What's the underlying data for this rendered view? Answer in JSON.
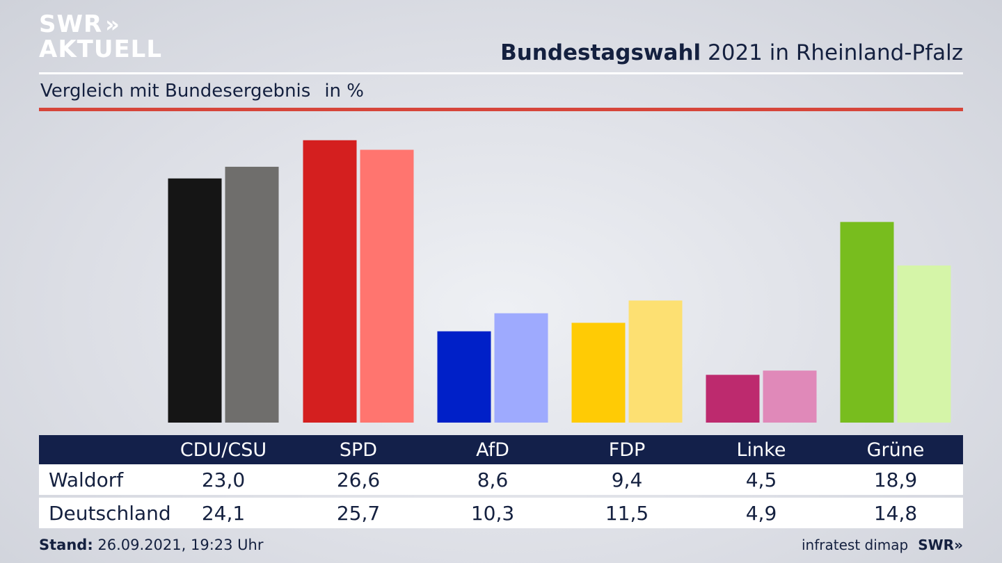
{
  "logo": {
    "line1": "SWR",
    "arrows": "»",
    "line2": "AKTUELL"
  },
  "title": {
    "bold": "Bundestagswahl",
    "rest": " 2021 in Rheinland-Pfalz"
  },
  "subtitle": {
    "text": "Vergleich mit Bundesergebnis",
    "unit": "in %"
  },
  "table": {
    "headers": [
      "CDU/CSU",
      "SPD",
      "AfD",
      "FDP",
      "Linke",
      "Grüne"
    ],
    "rows": [
      {
        "label": "Waldorf",
        "values": [
          "23,0",
          "26,6",
          "8,6",
          "9,4",
          "4,5",
          "18,9"
        ]
      },
      {
        "label": "Deutschland",
        "values": [
          "24,1",
          "25,7",
          "10,3",
          "11,5",
          "4,9",
          "14,8"
        ]
      }
    ]
  },
  "footer": {
    "stand_label": "Stand:",
    "stand_value": " 26.09.2021, 19:23 Uhr",
    "source": "infratest dimap",
    "brand": "SWR»"
  },
  "chart_data": {
    "type": "bar",
    "categories": [
      "CDU/CSU",
      "SPD",
      "AfD",
      "FDP",
      "Linke",
      "Grüne"
    ],
    "series": [
      {
        "name": "Waldorf",
        "values": [
          23.0,
          26.6,
          8.6,
          9.4,
          4.5,
          18.9
        ],
        "colors": [
          "#151515",
          "#d41f1f",
          "#0020c8",
          "#ffcb05",
          "#bd2a6e",
          "#78bd1e"
        ]
      },
      {
        "name": "Deutschland",
        "values": [
          24.1,
          25.7,
          10.3,
          11.5,
          4.9,
          14.8
        ],
        "colors": [
          "#6f6e6c",
          "#ff756f",
          "#9eaafe",
          "#fde072",
          "#e089b9",
          "#d5f5a8"
        ]
      }
    ],
    "ylabel": "in %",
    "ylim": [
      0,
      27.5
    ],
    "grid": false,
    "legend": "table-below"
  }
}
